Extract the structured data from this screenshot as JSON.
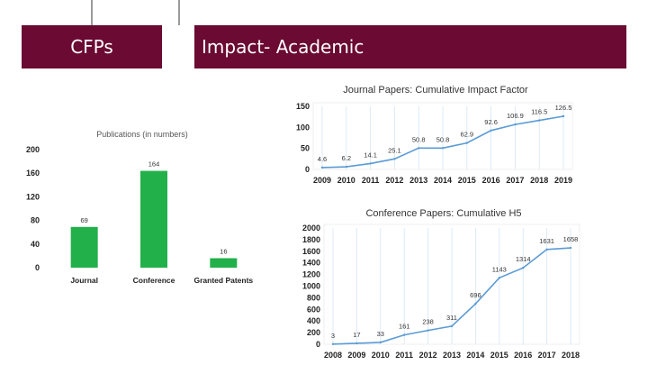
{
  "header": {
    "left_title": "CFPs",
    "right_title": "Impact- Academic"
  },
  "colors": {
    "banner": "#6b0a32",
    "bar": "#22b04b",
    "line": "#5b9bd5"
  },
  "chart_data": [
    {
      "type": "bar",
      "title": "Publications (in numbers)",
      "categories": [
        "Journal",
        "Conference",
        "Granted Patents"
      ],
      "values": [
        69,
        164,
        16
      ],
      "ylim": [
        0,
        200
      ],
      "yticks": [
        0,
        40,
        80,
        120,
        160,
        200
      ],
      "grid": false
    },
    {
      "type": "line",
      "title": "Journal Papers: Cumulative Impact Factor",
      "x": [
        "2009",
        "2010",
        "2011",
        "2012",
        "2013",
        "2014",
        "2015",
        "2016",
        "2017",
        "2018",
        "2019"
      ],
      "values": [
        4.6,
        6.2,
        14.1,
        25.1,
        50.8,
        50.8,
        62.9,
        92.6,
        106.9,
        116.5,
        126.5
      ],
      "labels": [
        "4.6",
        "6.2",
        "14.1",
        "25.1",
        "50.8",
        "50.8",
        "62.9",
        "92.6",
        "106.9",
        "116.5",
        "126.5"
      ],
      "ylim": [
        0,
        150
      ],
      "yticks": [
        0,
        50,
        100,
        150
      ],
      "grid": true
    },
    {
      "type": "line",
      "title": "Conference Papers: Cumulative H5",
      "x": [
        "2008",
        "2009",
        "2010",
        "2011",
        "2012",
        "2013",
        "2014",
        "2015",
        "2016",
        "2017",
        "2018"
      ],
      "values": [
        3,
        17,
        33,
        161,
        238,
        311,
        696,
        1143,
        1314,
        1631,
        1658
      ],
      "labels": [
        "3",
        "17",
        "33",
        "161",
        "238",
        "311",
        "696",
        "1143",
        "1314",
        "1631",
        "1658"
      ],
      "ylim": [
        0,
        2000
      ],
      "yticks": [
        0,
        200,
        400,
        600,
        800,
        1000,
        1200,
        1400,
        1600,
        1800,
        2000
      ],
      "grid": true
    }
  ]
}
